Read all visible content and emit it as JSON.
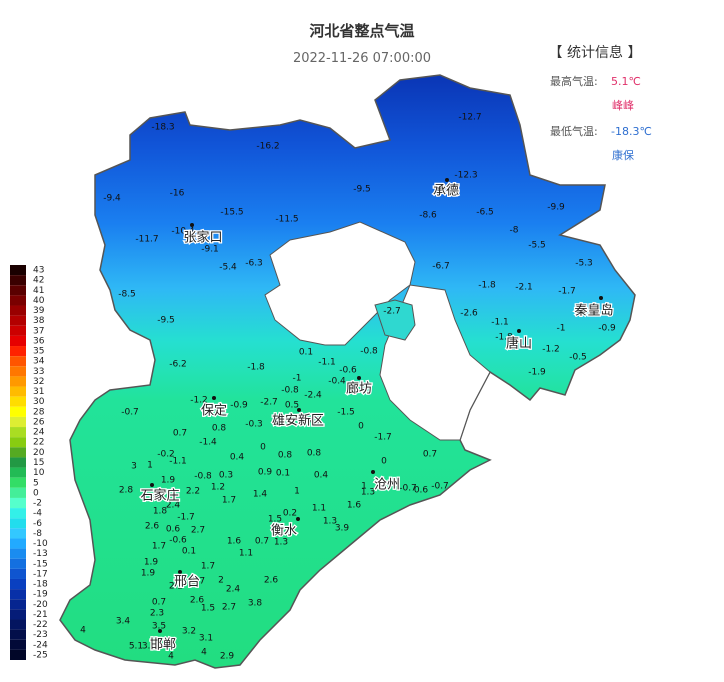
{
  "title": "河北省整点气温",
  "time": "2022-11-26 07:00:00",
  "stats": {
    "heading": "【 统计信息 】",
    "max_label": "最高气温:",
    "max_value": "5.1℃",
    "max_station": "峰峰",
    "min_label": "最低气温:",
    "min_value": "-18.3℃",
    "min_station": "康保"
  },
  "legend": {
    "values": [
      43,
      42,
      41,
      40,
      39,
      38,
      37,
      36,
      35,
      34,
      33,
      32,
      31,
      30,
      28,
      26,
      24,
      22,
      20,
      15,
      10,
      5,
      0,
      -2,
      -4,
      -6,
      -8,
      -10,
      -13,
      -15,
      -17,
      -18,
      -19,
      -20,
      -21,
      -22,
      -23,
      -24,
      -25
    ],
    "colors": [
      "#1a0000",
      "#3a0000",
      "#5a0000",
      "#7a0000",
      "#990000",
      "#b30000",
      "#cc0000",
      "#e60000",
      "#ff2200",
      "#ff5500",
      "#ff7700",
      "#ff9900",
      "#ffbb00",
      "#ffdd00",
      "#ffff00",
      "#ddee33",
      "#aadd22",
      "#88cc11",
      "#55aa22",
      "#229944",
      "#22bb55",
      "#33dd66",
      "#44ee99",
      "#55ffcc",
      "#33f0e8",
      "#22dded",
      "#33c8ff",
      "#22aaff",
      "#1a8cf0",
      "#1470e0",
      "#0f55d0",
      "#0a40c0",
      "#0830a8",
      "#062590",
      "#051c78",
      "#041560",
      "#030f4a",
      "#020a38",
      "#010628"
    ]
  },
  "cities": [
    "张家口",
    "承德",
    "秦皇岛",
    "唐山",
    "廊坊",
    "保定",
    "雄安新区",
    "石家庄",
    "沧州",
    "衡水",
    "邢台",
    "邯郸"
  ],
  "stations": [
    -18.3,
    -16.2,
    -12.7,
    -12.3,
    -9.5,
    -16.0,
    -9.4,
    -15.5,
    -11.5,
    -8.6,
    -6.5,
    -9.9,
    -11.7,
    -10.4,
    -9.1,
    -8.0,
    -5.5,
    -5.4,
    -6.3,
    -6.7,
    -5.3,
    -8.5,
    -1.8,
    -2.1,
    -1.7,
    -2.7,
    -2.6,
    -1.1,
    -1.0,
    -0.9,
    -9.5,
    -1.8,
    -1.2,
    -0.5,
    -1.9,
    -6.2,
    -1.8,
    -0.8,
    0.1,
    -1.1,
    -0.6,
    -0.4,
    -1.0,
    -0.7,
    -1.2,
    -0.9,
    -2.7,
    0.5,
    -2.4,
    -0.8,
    -1.5,
    -0.3,
    0.4,
    0.0,
    0.8,
    0.7,
    -1.4,
    -1.7,
    0.0,
    0.0,
    0.4,
    0.8,
    0.8,
    0.7,
    -0.2,
    -1.1,
    3.0,
    1.0,
    -0.8,
    0.3,
    0.9,
    0.1,
    0.4,
    1.0,
    1.3,
    -0.7,
    0.6,
    -0.7,
    1.9,
    2.8,
    2.2,
    1.2,
    1.7,
    1.4,
    1.0,
    2.4,
    1.8,
    -1.7,
    1.6,
    1.1,
    1.5,
    0.2,
    2.6,
    0.6,
    2.7,
    1.3,
    3.9,
    -0.6,
    1.6,
    0.7,
    1.3,
    1.7,
    0.1,
    1.1,
    1.9,
    1.9,
    1.7,
    2.0,
    2.2,
    2.7,
    2.4,
    2.6,
    0.7,
    2.6,
    3.8,
    2.3,
    1.5,
    2.7,
    3.4,
    3.5,
    4.0,
    3.2,
    3.1,
    5.1,
    3.2,
    4.0,
    4.0,
    2.9
  ]
}
